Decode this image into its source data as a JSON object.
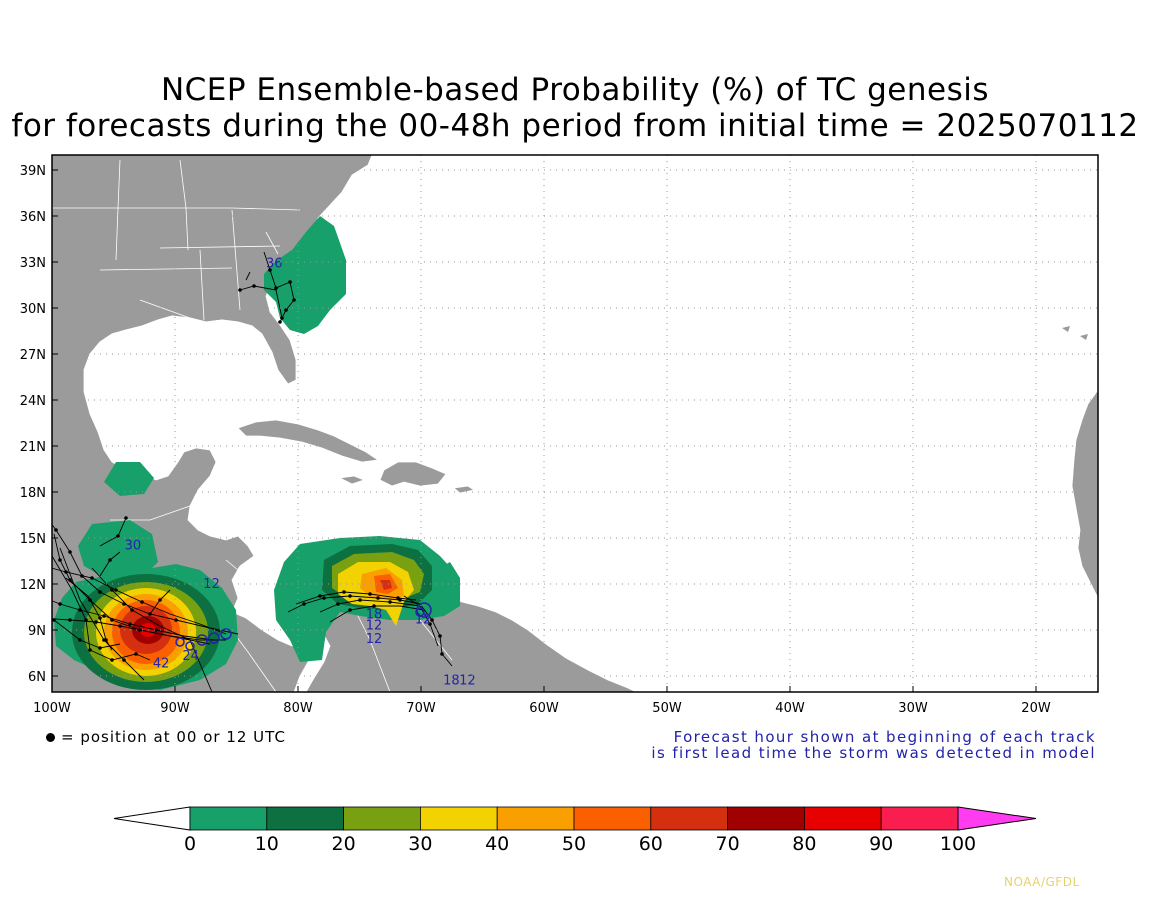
{
  "title": {
    "line1": "NCEP Ensemble-based Probability (%) of TC genesis",
    "line2": "for forecasts during the 00-48h period from initial time = 2025070112"
  },
  "axes": {
    "lat_labels": [
      "39N",
      "36N",
      "33N",
      "30N",
      "27N",
      "24N",
      "21N",
      "18N",
      "15N",
      "12N",
      "9N",
      "6N"
    ],
    "lon_labels": [
      "100W",
      "90W",
      "80W",
      "70W",
      "60W",
      "50W",
      "40W",
      "30W",
      "20W"
    ]
  },
  "legend": {
    "marker_text": "= position at 00 or 12 UTC",
    "note_line1": "Forecast hour shown at beginning of each track",
    "note_line2": "is first lead time the storm was detected in model"
  },
  "colorbar": {
    "ticks": [
      "0",
      "10",
      "20",
      "30",
      "40",
      "50",
      "60",
      "70",
      "80",
      "90",
      "100"
    ],
    "colors": [
      "#17a069",
      "#0d7040",
      "#78a010",
      "#f2d200",
      "#f9a000",
      "#fb6000",
      "#d43010",
      "#a00000",
      "#e60000",
      "#fa1e50"
    ],
    "below_color": "#ffffff",
    "above_color": "#ff3cf0"
  },
  "track_labels": [
    {
      "text": "36",
      "lon": -82.6,
      "lat": 32.9
    },
    {
      "text": "30",
      "lon": -94.1,
      "lat": 14.5
    },
    {
      "text": "12",
      "lon": -87.7,
      "lat": 12.0
    },
    {
      "text": "24",
      "lon": -89.4,
      "lat": 7.3
    },
    {
      "text": "42",
      "lon": -91.8,
      "lat": 6.8
    },
    {
      "text": "18",
      "lon": -74.5,
      "lat": 10.0
    },
    {
      "text": "12",
      "lon": -74.5,
      "lat": 9.3
    },
    {
      "text": "12",
      "lon": -74.5,
      "lat": 8.4
    },
    {
      "text": "12",
      "lon": -70.5,
      "lat": 9.7
    },
    {
      "text": "18",
      "lon": -68.2,
      "lat": 5.7
    },
    {
      "text": "12",
      "lon": -66.9,
      "lat": 5.7
    }
  ],
  "credit": "NOAA/GFDL"
}
